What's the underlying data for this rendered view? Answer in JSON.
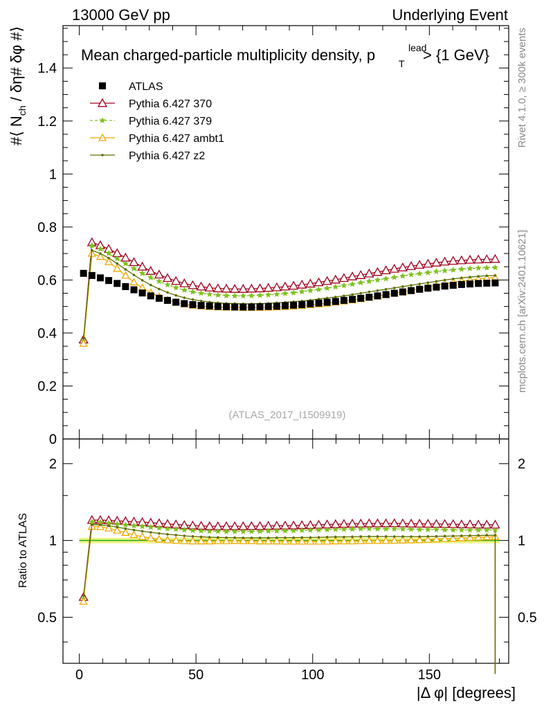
{
  "header": {
    "left": "13000 GeV pp",
    "right": "Underlying Event"
  },
  "side_labels": {
    "rivet": "Rivet 4.1.0, ≥ 300k events",
    "mcplots": "mcplots.cern.ch [arXiv:2401.10621]"
  },
  "colors": {
    "atlas": "#000000",
    "p370": "#a0001e",
    "p379": "#7fc01f",
    "ambt1": "#f0a800",
    "z2": "#5c6e00",
    "band": "#f2f587",
    "refline": "#1fb01f"
  },
  "chart_data": [
    {
      "type": "line",
      "title": "Mean charged-particle multiplicity density, p",
      "title_sup": "lead",
      "title_sub": "T",
      "title_tail": "> {1 GeV}",
      "ylabel": "#⟨ N",
      "ylabel_sub": "ch",
      "ylabel_tail": "/ δη# δφ #⟩",
      "xlim": [
        -7,
        184
      ],
      "ylim": [
        0,
        1.56
      ],
      "yticks": [
        0,
        0.2,
        0.4,
        0.6,
        0.8,
        1,
        1.2,
        1.4
      ],
      "ytick_labels": [
        "0",
        "0.2",
        "0.4",
        "0.6",
        "0.8",
        "1",
        "1.2",
        "1.4"
      ],
      "watermark": "(ATLAS_2017_I1509919)",
      "x": [
        1.8,
        5.4,
        9.0,
        12.6,
        16.2,
        19.8,
        23.4,
        27.0,
        30.6,
        34.2,
        37.8,
        41.4,
        45.0,
        48.6,
        52.2,
        55.8,
        59.4,
        63.0,
        66.6,
        70.2,
        73.8,
        77.4,
        81.0,
        84.6,
        88.2,
        91.8,
        95.4,
        99.0,
        102.6,
        106.2,
        109.8,
        113.4,
        117.0,
        120.6,
        124.2,
        127.8,
        131.4,
        135.0,
        138.6,
        142.2,
        145.8,
        149.4,
        153.0,
        156.6,
        160.2,
        163.8,
        167.4,
        171.0,
        174.6,
        178.2
      ],
      "series": [
        {
          "name": "ATLAS",
          "key": "atlas",
          "marker": "square",
          "values": [
            0.625,
            0.617,
            0.608,
            0.598,
            0.587,
            0.575,
            0.563,
            0.551,
            0.54,
            0.531,
            0.523,
            0.516,
            0.511,
            0.507,
            0.504,
            0.502,
            0.5,
            0.499,
            0.498,
            0.498,
            0.498,
            0.499,
            0.5,
            0.501,
            0.503,
            0.505,
            0.507,
            0.51,
            0.513,
            0.516,
            0.519,
            0.523,
            0.527,
            0.531,
            0.535,
            0.54,
            0.545,
            0.55,
            0.555,
            0.56,
            0.565,
            0.569,
            0.573,
            0.577,
            0.58,
            0.583,
            0.585,
            0.587,
            0.588,
            0.589
          ]
        },
        {
          "name": "Pythia 6.427 370",
          "key": "p370",
          "marker": "triangle",
          "values": [
            0.375,
            0.742,
            0.731,
            0.717,
            0.701,
            0.684,
            0.667,
            0.65,
            0.634,
            0.62,
            0.607,
            0.596,
            0.587,
            0.58,
            0.575,
            0.571,
            0.568,
            0.567,
            0.566,
            0.566,
            0.567,
            0.568,
            0.57,
            0.572,
            0.575,
            0.578,
            0.582,
            0.586,
            0.591,
            0.596,
            0.601,
            0.607,
            0.613,
            0.618,
            0.624,
            0.63,
            0.636,
            0.642,
            0.647,
            0.652,
            0.657,
            0.661,
            0.665,
            0.669,
            0.672,
            0.674,
            0.676,
            0.677,
            0.678,
            0.679
          ]
        },
        {
          "name": "Pythia 6.427 379",
          "key": "p379",
          "marker": "star",
          "values": [
            0.37,
            0.73,
            0.717,
            0.7,
            0.681,
            0.662,
            0.643,
            0.625,
            0.609,
            0.595,
            0.582,
            0.571,
            0.562,
            0.555,
            0.55,
            0.546,
            0.543,
            0.541,
            0.54,
            0.54,
            0.541,
            0.542,
            0.544,
            0.546,
            0.549,
            0.552,
            0.556,
            0.56,
            0.564,
            0.569,
            0.574,
            0.579,
            0.584,
            0.59,
            0.595,
            0.6,
            0.605,
            0.61,
            0.615,
            0.62,
            0.624,
            0.628,
            0.632,
            0.635,
            0.638,
            0.641,
            0.643,
            0.645,
            0.646,
            0.647
          ]
        },
        {
          "name": "Pythia 6.427 ambt1",
          "key": "ambt1",
          "marker": "triangle-open",
          "values": [
            0.36,
            0.7,
            0.688,
            0.668,
            0.643,
            0.617,
            0.592,
            0.57,
            0.552,
            0.537,
            0.525,
            0.516,
            0.509,
            0.504,
            0.501,
            0.499,
            0.498,
            0.497,
            0.497,
            0.496,
            0.496,
            0.496,
            0.497,
            0.498,
            0.499,
            0.501,
            0.503,
            0.506,
            0.509,
            0.512,
            0.516,
            0.52,
            0.524,
            0.529,
            0.534,
            0.539,
            0.544,
            0.55,
            0.556,
            0.562,
            0.568,
            0.574,
            0.58,
            0.586,
            0.591,
            0.596,
            0.6,
            0.604,
            0.607,
            0.609
          ]
        },
        {
          "name": "Pythia 6.427 z2",
          "key": "z2",
          "marker": "dot",
          "values": [
            0.38,
            0.712,
            0.7,
            0.683,
            0.662,
            0.64,
            0.619,
            0.599,
            0.581,
            0.566,
            0.553,
            0.542,
            0.533,
            0.526,
            0.521,
            0.517,
            0.514,
            0.512,
            0.511,
            0.51,
            0.51,
            0.511,
            0.512,
            0.514,
            0.516,
            0.518,
            0.521,
            0.524,
            0.528,
            0.532,
            0.536,
            0.54,
            0.545,
            0.55,
            0.555,
            0.56,
            0.565,
            0.57,
            0.575,
            0.58,
            0.585,
            0.59,
            0.595,
            0.6,
            0.604,
            0.608,
            0.611,
            0.614,
            0.616,
            0.617
          ]
        }
      ]
    },
    {
      "type": "line",
      "title": "ratio",
      "ylabel": "Ratio to ATLAS",
      "xlabel": "|Δ φ| [degrees]",
      "xlim": [
        -7,
        184
      ],
      "ylim": [
        0.33,
        2.5
      ],
      "yscale": "log",
      "yticks": [
        0.5,
        1,
        2
      ],
      "ytick_labels": [
        "0.5",
        "1",
        "2"
      ],
      "xticks": [
        0,
        50,
        100,
        150
      ],
      "xtick_labels": [
        "0",
        "50",
        "100",
        "150"
      ],
      "band": [
        0.975,
        1.025
      ],
      "last_point_ratio": 0.3
    }
  ]
}
